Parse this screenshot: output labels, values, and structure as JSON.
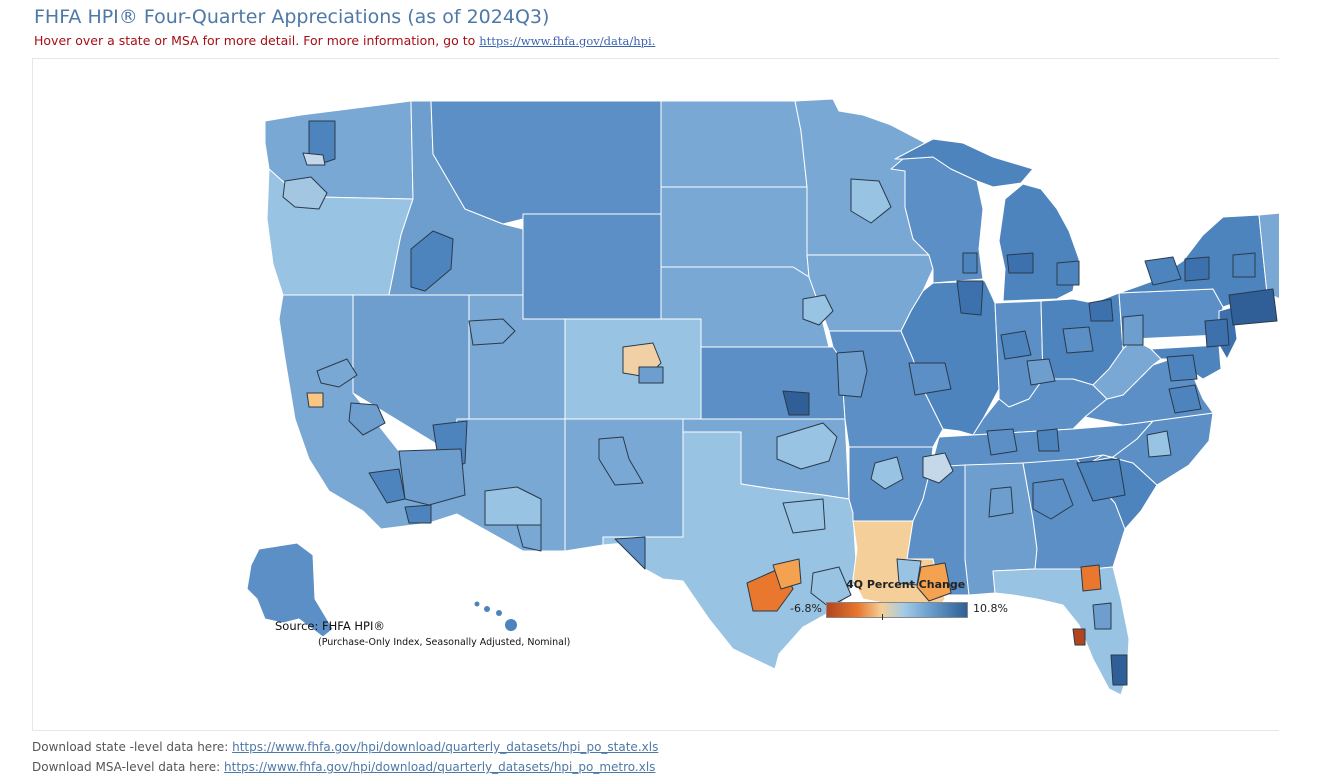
{
  "header": {
    "title": "FHFA HPI® Four-Quarter Appreciations (as of 2024Q3)",
    "subtitle_text": "Hover over a state or MSA for more detail. For more information, go to ",
    "subtitle_link": "https://www.fhfa.gov/data/hpi."
  },
  "legend": {
    "title": "4Q Percent Change",
    "min_label": "-6.8%",
    "max_label": "10.8%",
    "colors": [
      "#b2451e",
      "#e9772d",
      "#f5cf99",
      "#a3cbe6",
      "#6ea1d0",
      "#2f5f96"
    ]
  },
  "source": {
    "label": "Source:  FHFA HPI®",
    "note": "(Purchase-Only Index, Seasonally Adjusted, Nominal)"
  },
  "downloads": [
    {
      "text": "Download state -level data here: ",
      "link": "https://www.fhfa.gov/hpi/download/quarterly_datasets/hpi_po_state.xls"
    },
    {
      "text": "Download MSA-level data here: ",
      "link": "https://www.fhfa.gov/hpi/download/quarterly_datasets/hpi_po_metro.xls"
    }
  ]
}
